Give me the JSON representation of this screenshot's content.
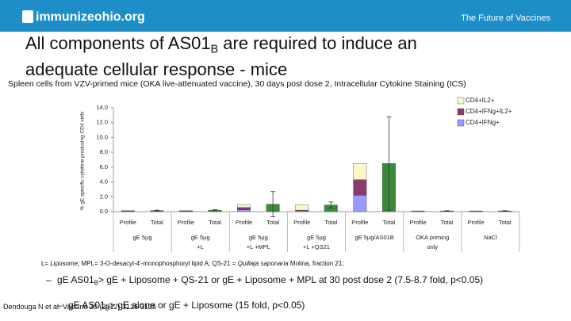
{
  "header": {
    "logo": "immunizeohio.org",
    "tagline": "The Future of Vaccines"
  },
  "title": [
    "All components of AS01",
    "B",
    " are required to induce an adequate cellular response - mice"
  ],
  "subtitle": "Spleen cells from VZV-primed mice (OKA live-attenuated vaccine), 30 days post dose 2, Intracellular Cytokine Staining (ICS)",
  "chart_data": {
    "type": "bar",
    "stacked": true,
    "ylabel": "% gE specific cytokine producing CD4 cells",
    "categories": [
      "Profile",
      "Total",
      "Profile",
      "Total",
      "Profile",
      "Total",
      "Profile",
      "Total",
      "Profile",
      "Total",
      "Profile",
      "Total",
      "Profile",
      "Total"
    ],
    "groups": [
      [
        "gE 5µg"
      ],
      [
        "gE 5µg",
        "+L"
      ],
      [
        "gE 5µg",
        "+L +MPL"
      ],
      [
        "gE 5µg",
        "+L +QS21"
      ],
      [
        "gE 5µg/AS01B"
      ],
      [
        "OKA priming",
        "only"
      ],
      [
        "NaCl"
      ]
    ],
    "series": [
      {
        "name": "CD4+IFNg+",
        "color": "#9999ff",
        "values": [
          0.05,
          null,
          0.05,
          null,
          0.25,
          null,
          0.1,
          null,
          2.2,
          null,
          0.03,
          null,
          0.03,
          null
        ]
      },
      {
        "name": "CD4+IFNg+IL2+",
        "color": "#8b3a6b",
        "values": [
          0.03,
          null,
          0.03,
          null,
          0.3,
          null,
          0.1,
          null,
          2.1,
          null,
          0.02,
          null,
          0.02,
          null
        ]
      },
      {
        "name": "CD4+IL2+",
        "color": "#fbf7c9",
        "values": [
          0.07,
          null,
          0.07,
          null,
          0.4,
          null,
          0.7,
          null,
          2.2,
          null,
          0.05,
          null,
          0.05,
          null
        ]
      }
    ],
    "totals": {
      "color": "#3b8a3b",
      "values": [
        null,
        0.15,
        null,
        0.2,
        null,
        1.0,
        null,
        0.9,
        null,
        6.5,
        null,
        0.1,
        null,
        0.1
      ],
      "errors": [
        null,
        0.05,
        null,
        0.05,
        null,
        1.7,
        null,
        0.4,
        null,
        6.3,
        null,
        0.03,
        null,
        0.03
      ]
    },
    "ylim": [
      0,
      14
    ],
    "yticks": [
      {
        "value": 0,
        "label": "0.0"
      },
      {
        "value": 2,
        "label": "2.0"
      },
      {
        "value": 4,
        "label": "4.0"
      },
      {
        "value": 6,
        "label": "6.0"
      },
      {
        "value": 8,
        "label": "8.0"
      },
      {
        "value": 10,
        "label": "10.0"
      },
      {
        "value": 12,
        "label": "12.0"
      },
      {
        "value": 14,
        "label": "14.0"
      }
    ],
    "legend": "upper right"
  },
  "footnote": [
    "L= Liposome; MPL= 3-O-desacyl-4'-monophosphoryl lipid A; QS-21 = ",
    "Quillaja saponaria",
    " Molina, fraction 21;"
  ],
  "bullets": [
    [
      "gE AS01",
      "B",
      "> gE + Liposome + QS-21 or gE + Liposome + MPL at 30 post dose 2 (7.5-8.7 fold, p<0.05)"
    ],
    [
      "gE AS01",
      "B",
      "> gE alone or gE + Liposome (15 fold, p<0.05)"
    ]
  ],
  "citation": "Dendouga N et al. Vaccine 30 (2012) 3126-3135"
}
